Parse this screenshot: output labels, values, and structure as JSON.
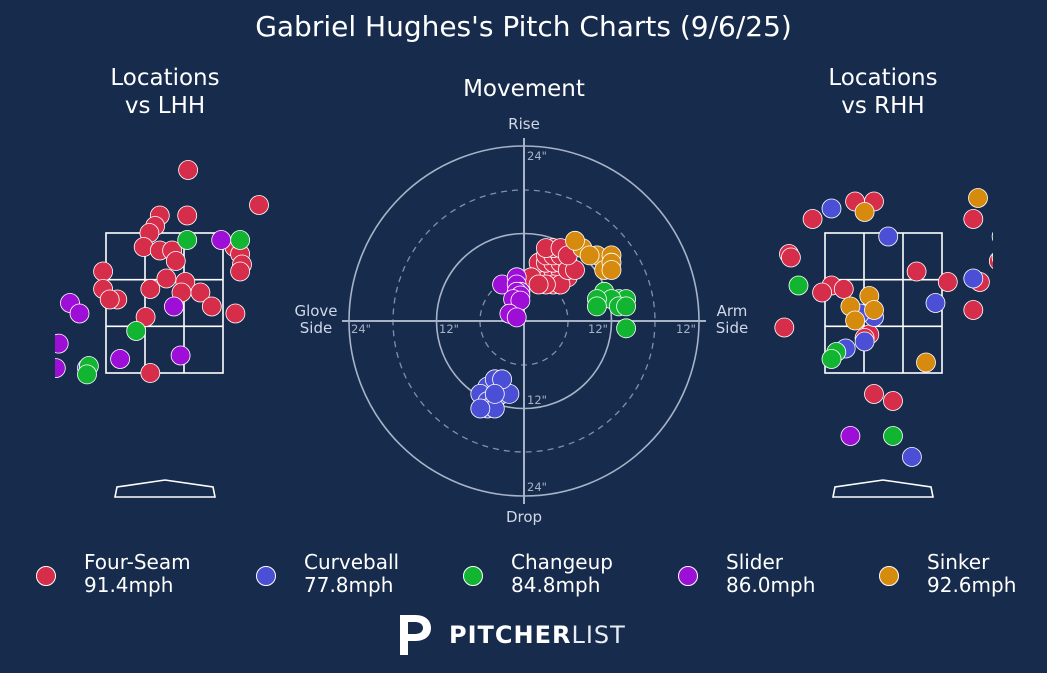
{
  "title": "Gabriel Hughes's Pitch Charts (9/6/25)",
  "subtitles": {
    "lhh": "Locations\nvs LHH",
    "movement": "Movement",
    "rhh": "Locations\nvs RHH"
  },
  "movement_labels": {
    "top": "Rise",
    "bottom": "Drop",
    "left": "Glove\nSide",
    "right": "Arm\nSide"
  },
  "ring_labels": [
    "24\"",
    "12\"",
    "12\"",
    "24\"",
    "24\"",
    "12\"",
    "12\"",
    "24\""
  ],
  "pitches": [
    {
      "name": "Four-Seam",
      "velo": "91.4mph",
      "color": "#d62d4a"
    },
    {
      "name": "Curveball",
      "velo": "77.8mph",
      "color": "#4b4fd6"
    },
    {
      "name": "Changeup",
      "velo": "84.8mph",
      "color": "#12b531"
    },
    {
      "name": "Slider",
      "velo": "86.0mph",
      "color": "#9d0fd6"
    },
    {
      "name": "Sinker",
      "velo": "92.6mph",
      "color": "#d68b0f"
    }
  ],
  "brand": {
    "bold": "PITCHER",
    "light": "LIST"
  },
  "chart_data": [
    {
      "type": "scatter",
      "title": "Locations vs LHH",
      "x_units": "ft (plate x)",
      "y_units": "ft (plate z)",
      "series": [
        {
          "name": "Four-Seam",
          "points": [
            [
              0.25,
              4.4
            ],
            [
              1.0,
              3.9
            ],
            [
              -0.05,
              3.75
            ],
            [
              0.24,
              3.75
            ],
            [
              -0.1,
              3.6
            ],
            [
              -0.16,
              3.5
            ],
            [
              0.74,
              3.3
            ],
            [
              -0.22,
              3.3
            ],
            [
              -0.05,
              3.25
            ],
            [
              0.8,
              3.2
            ],
            [
              0.82,
              3.05
            ],
            [
              0.08,
              3.25
            ],
            [
              0.12,
              3.1
            ],
            [
              -0.65,
              2.95
            ],
            [
              -0.65,
              2.7
            ],
            [
              0.8,
              2.95
            ],
            [
              0.02,
              2.85
            ],
            [
              0.22,
              2.8
            ],
            [
              0.18,
              2.65
            ],
            [
              -0.15,
              2.7
            ],
            [
              -0.5,
              2.55
            ],
            [
              -0.58,
              2.55
            ],
            [
              0.38,
              2.65
            ],
            [
              0.5,
              2.45
            ],
            [
              0.75,
              2.35
            ],
            [
              -0.2,
              2.3
            ],
            [
              -0.15,
              1.5
            ]
          ]
        },
        {
          "name": "Curveball",
          "points": [
            [
              -0.82,
              1.57
            ]
          ]
        },
        {
          "name": "Changeup",
          "points": [
            [
              0.24,
              3.4
            ],
            [
              0.8,
              3.4
            ],
            [
              1.3,
              2.6
            ],
            [
              -0.3,
              2.1
            ],
            [
              -0.8,
              1.6
            ],
            [
              -0.82,
              1.48
            ]
          ]
        },
        {
          "name": "Slider",
          "points": [
            [
              0.6,
              3.4
            ],
            [
              -1.0,
              2.5
            ],
            [
              0.1,
              2.45
            ],
            [
              -0.9,
              2.35
            ],
            [
              -1.12,
              1.92
            ],
            [
              0.17,
              1.75
            ],
            [
              -0.47,
              1.7
            ],
            [
              -1.15,
              1.57
            ]
          ]
        },
        {
          "name": "Sinker",
          "points": []
        }
      ]
    },
    {
      "type": "scatter",
      "title": "Movement",
      "x_units": "in (horizontal break, arm side +)",
      "y_units": "in (induced vertical break)",
      "series": [
        {
          "name": "Four-Seam",
          "points": [
            [
              2,
              6
            ],
            [
              3,
              6
            ],
            [
              4,
              6
            ],
            [
              5,
              6
            ],
            [
              6,
              6
            ],
            [
              3,
              7
            ],
            [
              4,
              7
            ],
            [
              5,
              7
            ],
            [
              2,
              8
            ],
            [
              3,
              8
            ],
            [
              4,
              8
            ],
            [
              5,
              8
            ],
            [
              6,
              8
            ],
            [
              3,
              9
            ],
            [
              4,
              9
            ],
            [
              5,
              9
            ],
            [
              1,
              6
            ],
            [
              4,
              5
            ],
            [
              5,
              5
            ],
            [
              6,
              7
            ],
            [
              7,
              7
            ],
            [
              3,
              5
            ],
            [
              2,
              5
            ],
            [
              4,
              10
            ],
            [
              3,
              10
            ],
            [
              5,
              10
            ],
            [
              6,
              9
            ]
          ]
        },
        {
          "name": "Curveball",
          "points": [
            [
              -5,
              -9
            ],
            [
              -4,
              -8
            ],
            [
              -6,
              -10
            ],
            [
              -5,
              -11
            ],
            [
              -4,
              -11
            ],
            [
              -3,
              -10
            ],
            [
              -2,
              -10
            ],
            [
              -3,
              -8
            ],
            [
              -5,
              -12
            ],
            [
              -4,
              -12
            ],
            [
              -6,
              -12
            ],
            [
              -4,
              -10
            ]
          ]
        },
        {
          "name": "Changeup",
          "points": [
            [
              11,
              4
            ],
            [
              13,
              3
            ],
            [
              14,
              3
            ],
            [
              12,
              3
            ],
            [
              10,
              3
            ],
            [
              13,
              2
            ],
            [
              14,
              2
            ],
            [
              10,
              2
            ],
            [
              14,
              -1
            ]
          ]
        },
        {
          "name": "Slider",
          "points": [
            [
              -3,
              5
            ],
            [
              -1,
              6
            ],
            [
              -1,
              5
            ],
            [
              -0.5,
              4
            ],
            [
              -1,
              4
            ],
            [
              -0.5,
              3.5
            ],
            [
              -1.5,
              3
            ],
            [
              -0.5,
              2.8
            ],
            [
              -2,
              1
            ],
            [
              -1,
              0.5
            ]
          ]
        },
        {
          "name": "Sinker",
          "points": [
            [
              8,
              10
            ],
            [
              10,
              9
            ],
            [
              12,
              9
            ],
            [
              11,
              7
            ],
            [
              12,
              8
            ],
            [
              12,
              7
            ],
            [
              7,
              11
            ],
            [
              9,
              9
            ]
          ]
        }
      ]
    },
    {
      "type": "scatter",
      "title": "Locations vs RHH",
      "x_units": "ft (plate x)",
      "y_units": "ft (plate z)",
      "series": [
        {
          "name": "Four-Seam",
          "points": [
            [
              -0.3,
              3.95
            ],
            [
              -0.1,
              3.95
            ],
            [
              -0.75,
              3.7
            ],
            [
              0.95,
              3.7
            ],
            [
              1.45,
              3.3
            ],
            [
              -1.0,
              3.2
            ],
            [
              -0.98,
              3.15
            ],
            [
              1.22,
              3.1
            ],
            [
              0.35,
              2.95
            ],
            [
              1.35,
              2.8
            ],
            [
              -0.55,
              2.75
            ],
            [
              -0.65,
              2.65
            ],
            [
              -0.42,
              2.7
            ],
            [
              0.68,
              2.8
            ],
            [
              1.02,
              2.8
            ],
            [
              1.85,
              2.6
            ],
            [
              0.95,
              2.4
            ],
            [
              -1.05,
              2.15
            ],
            [
              -0.15,
              2.05
            ],
            [
              -0.2,
              2.0
            ],
            [
              1.3,
              1.4
            ],
            [
              -0.1,
              1.2
            ],
            [
              0.1,
              1.1
            ],
            [
              -1.45,
              1.0
            ]
          ]
        },
        {
          "name": "Curveball",
          "points": [
            [
              -1.45,
              3.95
            ],
            [
              -0.55,
              3.85
            ],
            [
              0.05,
              3.45
            ],
            [
              0.95,
              2.85
            ],
            [
              0.55,
              2.5
            ],
            [
              -0.1,
              2.3
            ],
            [
              -0.25,
              2.35
            ],
            [
              -0.2,
              1.95
            ],
            [
              -0.4,
              1.85
            ],
            [
              0.3,
              0.3
            ],
            [
              -1.85,
              -0.1
            ],
            [
              -0.55,
              -0.75
            ]
          ]
        },
        {
          "name": "Changeup",
          "points": [
            [
              1.25,
              3.45
            ],
            [
              -0.9,
              2.75
            ],
            [
              -0.5,
              1.8
            ],
            [
              -0.55,
              1.7
            ],
            [
              0.1,
              0.6
            ]
          ]
        },
        {
          "name": "Slider",
          "points": [
            [
              -0.35,
              0.6
            ]
          ]
        },
        {
          "name": "Sinker",
          "points": [
            [
              1.0,
              4.0
            ],
            [
              -0.2,
              3.8
            ],
            [
              1.25,
              3.15
            ],
            [
              -0.15,
              2.6
            ],
            [
              -0.35,
              2.45
            ],
            [
              -0.3,
              2.25
            ],
            [
              0.45,
              1.65
            ],
            [
              -0.1,
              2.4
            ]
          ]
        }
      ]
    }
  ]
}
